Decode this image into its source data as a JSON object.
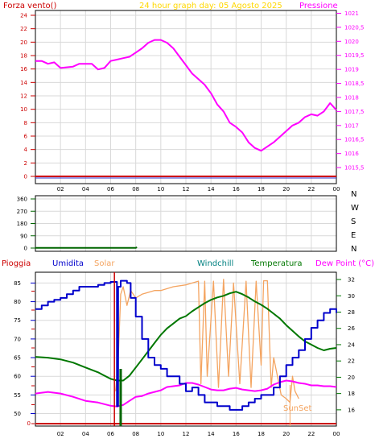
{
  "colors": {
    "background": "#ffffff",
    "frame": "#000000",
    "grid": "#d9d9d9",
    "title": "#ffd700",
    "pressure": "#ff00ff",
    "wind_force": "#cc0000",
    "wind_direction": "#006600",
    "umidita": "#0000cc",
    "temperatura": "#007700",
    "windchill": "#008080",
    "dew_point": "#ff00ff",
    "solar": "#f4a460",
    "pioggia": "#cc0000"
  },
  "panel1": {
    "title": "24 hour graph day:  05 Agosto 2025",
    "left_label": "Forza vento()",
    "right_label": "Pressione"
  },
  "panel3_labels": {
    "pioggia": "Pioggia",
    "umidita": "Umidita",
    "solar": "Solar",
    "windchill": "Windchill",
    "temperatura": "Temperatura",
    "dew_point": "Dew Point (°C)",
    "sunset": "SunSet"
  },
  "chart_data": [
    {
      "type": "line",
      "title": "24 hour graph day:  05 Agosto 2025",
      "xlabel": "",
      "x_ticks": [
        "02",
        "04",
        "06",
        "08",
        "10",
        "12",
        "14",
        "16",
        "18",
        "20",
        "22",
        "00"
      ],
      "xlim": [
        0,
        24
      ],
      "y_left_label": "Forza vento()",
      "y_left_ticks": [
        "0",
        "2",
        "4",
        "6",
        "8",
        "10",
        "12",
        "14",
        "16",
        "18",
        "20",
        "22",
        "24"
      ],
      "y_left_lim": [
        0,
        24
      ],
      "y_right_label": "Pressione",
      "y_right_ticks": [
        "1015,5",
        "1016",
        "1016,5",
        "1017",
        "1017,5",
        "1018",
        "1018,5",
        "1019",
        "1019,5",
        "1020",
        "1020,5",
        "1021"
      ],
      "y_right_lim": [
        1015.1,
        1021.1
      ],
      "series": [
        {
          "name": "Pressione",
          "axis": "right",
          "x": [
            0,
            0.5,
            1,
            1.5,
            2,
            3,
            3.5,
            4,
            4.5,
            5,
            5.5,
            6,
            6.5,
            7,
            7.5,
            8,
            8.5,
            9,
            9.5,
            10,
            10.5,
            11,
            11.5,
            12,
            12.5,
            13,
            13.5,
            14,
            14.5,
            15,
            15.5,
            16,
            16.5,
            17,
            17.5,
            18,
            18.5,
            19,
            19.5,
            20,
            20.5,
            21,
            21.5,
            22,
            22.5,
            23,
            23.5,
            24
          ],
          "values": [
            1019.3,
            1019.3,
            1019.2,
            1019.25,
            1019.05,
            1019.1,
            1019.2,
            1019.2,
            1019.2,
            1019.0,
            1019.05,
            1019.3,
            1019.35,
            1019.4,
            1019.45,
            1019.6,
            1019.75,
            1019.95,
            1020.05,
            1020.05,
            1019.95,
            1019.75,
            1019.45,
            1019.15,
            1018.85,
            1018.65,
            1018.45,
            1018.15,
            1017.75,
            1017.5,
            1017.1,
            1016.95,
            1016.75,
            1016.4,
            1016.2,
            1016.1,
            1016.25,
            1016.4,
            1016.6,
            1016.8,
            1017.0,
            1017.1,
            1017.3,
            1017.4,
            1017.35,
            1017.5,
            1017.8,
            1017.55
          ]
        },
        {
          "name": "Forza vento()",
          "axis": "left",
          "x": [
            0,
            24
          ],
          "values": [
            0,
            0
          ]
        }
      ]
    },
    {
      "type": "line",
      "title": "",
      "y_right_ticks": [
        "N",
        "W",
        "S",
        "E",
        "N"
      ],
      "y_left_ticks": [
        "0",
        "90",
        "180",
        "270",
        "360"
      ],
      "ylim": [
        0,
        360
      ],
      "xlim": [
        0,
        24
      ],
      "series": [
        {
          "name": "",
          "x": [
            0,
            8,
            8.1
          ],
          "values": [
            2,
            2,
            6
          ]
        }
      ]
    },
    {
      "type": "line",
      "title": "",
      "x_ticks": [
        "02",
        "04",
        "06",
        "08",
        "10",
        "12",
        "14",
        "16",
        "18",
        "20",
        "22",
        "00"
      ],
      "xlim": [
        0,
        24
      ],
      "y_left_ticks": [
        "50",
        "55",
        "60",
        "65",
        "70",
        "75",
        "80",
        "85"
      ],
      "y_left_lim": [
        48.6,
        86.6
      ],
      "y_right_ticks": [
        "16",
        "18",
        "20",
        "22",
        "24",
        "26",
        "28",
        "30",
        "32"
      ],
      "y_right_lim": [
        14.8,
        32.3
      ],
      "series": [
        {
          "name": "Umidita",
          "axis": "left",
          "x": [
            0,
            0.5,
            1,
            1.5,
            2,
            2.5,
            3,
            3.5,
            4,
            4.5,
            5,
            5.5,
            6,
            6.4,
            6.5,
            6.6,
            6.8,
            7.0,
            7.3,
            7.6,
            8,
            8.5,
            9,
            9.5,
            10,
            10.5,
            11,
            11.5,
            12,
            12.5,
            13,
            13.5,
            14,
            14.5,
            15,
            15.5,
            16,
            16.5,
            17,
            17.5,
            18,
            18.5,
            19,
            19.5,
            20,
            20.5,
            21,
            21.5,
            22,
            22.5,
            23,
            23.5,
            24
          ],
          "values": [
            78,
            79,
            80,
            80.5,
            81,
            82,
            83,
            84,
            84,
            84,
            84.5,
            85,
            85.3,
            85.3,
            52,
            84,
            85.6,
            85.6,
            85.0,
            81,
            76,
            70,
            65,
            63,
            62,
            60,
            60,
            58,
            56,
            57,
            55,
            53,
            53,
            52,
            52,
            51,
            51,
            52,
            53,
            54,
            55,
            55,
            57,
            60,
            63,
            65,
            67,
            70,
            73,
            75,
            77,
            78,
            77
          ]
        },
        {
          "name": "Temperatura",
          "axis": "right",
          "x": [
            0,
            1,
            2,
            3,
            4,
            5,
            6,
            6.5,
            7,
            7.5,
            8,
            8.5,
            9,
            9.5,
            10,
            10.5,
            11,
            11.5,
            12,
            12.5,
            13,
            13.5,
            14,
            14.5,
            15,
            15.5,
            16,
            16.5,
            17,
            17.5,
            18,
            18.5,
            19,
            19.5,
            20,
            20.5,
            21,
            21.5,
            22,
            22.5,
            23,
            23.5,
            24
          ],
          "values": [
            22.5,
            22.4,
            22.2,
            21.8,
            21.2,
            20.6,
            19.8,
            19.6,
            19.6,
            20.2,
            21.2,
            22.2,
            23.2,
            24.2,
            25.2,
            26.0,
            26.6,
            27.2,
            27.5,
            28.1,
            28.6,
            29.1,
            29.5,
            29.8,
            30.0,
            30.3,
            30.5,
            30.2,
            29.8,
            29.3,
            28.9,
            28.4,
            27.8,
            27.2,
            26.4,
            25.7,
            25.0,
            24.4,
            24.0,
            23.6,
            23.3,
            23.5,
            23.6
          ]
        },
        {
          "name": "Dew Point (°C)",
          "axis": "right",
          "x": [
            0,
            1,
            2,
            3,
            4,
            5,
            6,
            6.5,
            7,
            7.5,
            8,
            8.5,
            9,
            9.5,
            10,
            10.5,
            11,
            11.5,
            12,
            12.5,
            13,
            13.5,
            14,
            14.5,
            15,
            15.5,
            16,
            16.5,
            17,
            17.5,
            18,
            18.5,
            19,
            19.5,
            20,
            20.5,
            21,
            21.5,
            22,
            22.5,
            23,
            23.5,
            24
          ],
          "values": [
            18.0,
            18.2,
            18.0,
            17.6,
            17.1,
            16.9,
            16.5,
            16.4,
            16.6,
            17.1,
            17.6,
            17.7,
            18.0,
            18.2,
            18.4,
            18.8,
            18.9,
            19.0,
            19.3,
            19.3,
            19.1,
            18.8,
            18.5,
            18.4,
            18.4,
            18.6,
            18.7,
            18.5,
            18.4,
            18.3,
            18.4,
            18.6,
            19.1,
            19.4,
            19.6,
            19.5,
            19.3,
            19.2,
            19.0,
            19.0,
            18.9,
            18.9,
            18.8
          ]
        },
        {
          "name": "Solar",
          "axis": "left",
          "x": [
            6.4,
            6.6,
            6.8,
            7.0,
            7.3,
            7.6,
            8,
            8.5,
            9,
            9.5,
            10,
            11,
            12,
            12.5,
            13,
            13.2,
            13.5,
            13.7,
            14.2,
            14.6,
            15,
            15.4,
            15.8,
            16.3,
            16.8,
            17.2,
            17.6,
            18.0,
            18.2,
            18.5,
            18.8,
            19.0,
            19.3,
            19.6,
            20.0,
            20.3,
            20.5,
            20.7,
            21.0
          ],
          "values": [
            56,
            64,
            82,
            84,
            79,
            83,
            81,
            82,
            82.5,
            83,
            83,
            84,
            84.5,
            85,
            85.5,
            58,
            85.5,
            60,
            85.5,
            57,
            86,
            60,
            85,
            58,
            85.5,
            57,
            85.5,
            63,
            85.6,
            85.6,
            57,
            65,
            60,
            55,
            54,
            53,
            60,
            56,
            54
          ]
        },
        {
          "name": "Windchill",
          "axis": "right",
          "x": [],
          "values": []
        },
        {
          "name": "Pioggia",
          "axis": "left",
          "x": [
            0,
            24
          ],
          "values": [
            49,
            49
          ]
        }
      ]
    }
  ]
}
